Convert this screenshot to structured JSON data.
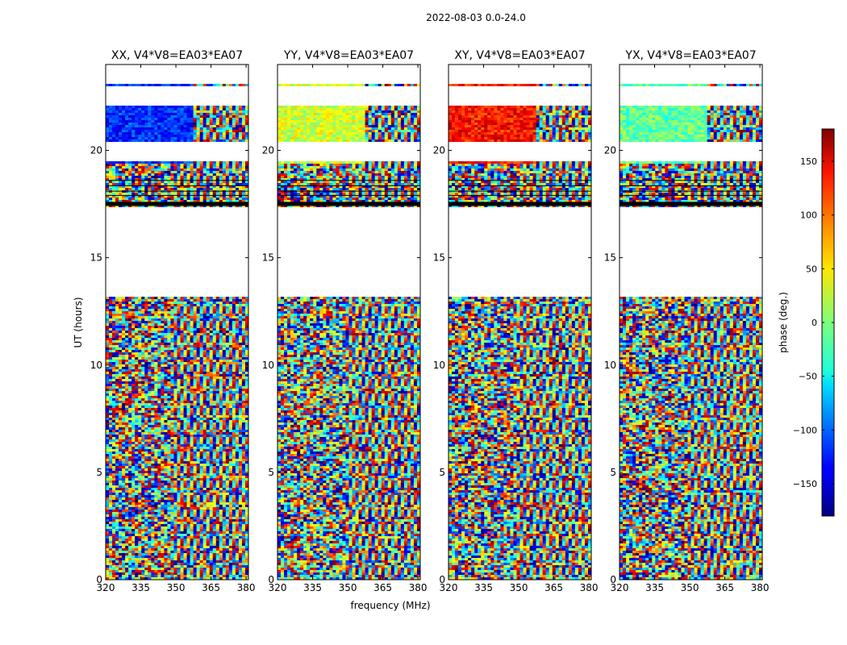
{
  "suptitle": "2022-08-03 0.0-24.0",
  "chart_data": {
    "type": "heatmap",
    "xlabel": "frequency (MHz)",
    "ylabel": "UT (hours)",
    "xlim": [
      320,
      381
    ],
    "ylim": [
      0,
      24
    ],
    "xticks": [
      320,
      335,
      350,
      365,
      380
    ],
    "yticks": [
      0,
      5,
      10,
      15,
      20
    ],
    "colorbar": {
      "label": "phase (deg.)",
      "range": [
        -180,
        180
      ],
      "ticks": [
        150,
        100,
        50,
        0,
        -50,
        -100,
        -150
      ],
      "tick_labels": [
        "150",
        "100",
        "50",
        "0",
        "−50",
        "−100",
        "−150"
      ],
      "colormap": "jet"
    },
    "panels": [
      {
        "title": "XX, V4*V8=EA03*EA07",
        "coherent_phase_deg": -120
      },
      {
        "title": "YY, V4*V8=EA03*EA07",
        "coherent_phase_deg": 30
      },
      {
        "title": "XY, V4*V8=EA03*EA07",
        "coherent_phase_deg": 130
      },
      {
        "title": "YX, V4*V8=EA03*EA07",
        "coherent_phase_deg": -10
      }
    ],
    "blank_ut_ranges": [
      [
        13.2,
        17.4
      ],
      [
        19.5,
        20.5
      ],
      [
        22.1,
        23.0
      ],
      [
        23.1,
        24.0
      ]
    ]
  }
}
